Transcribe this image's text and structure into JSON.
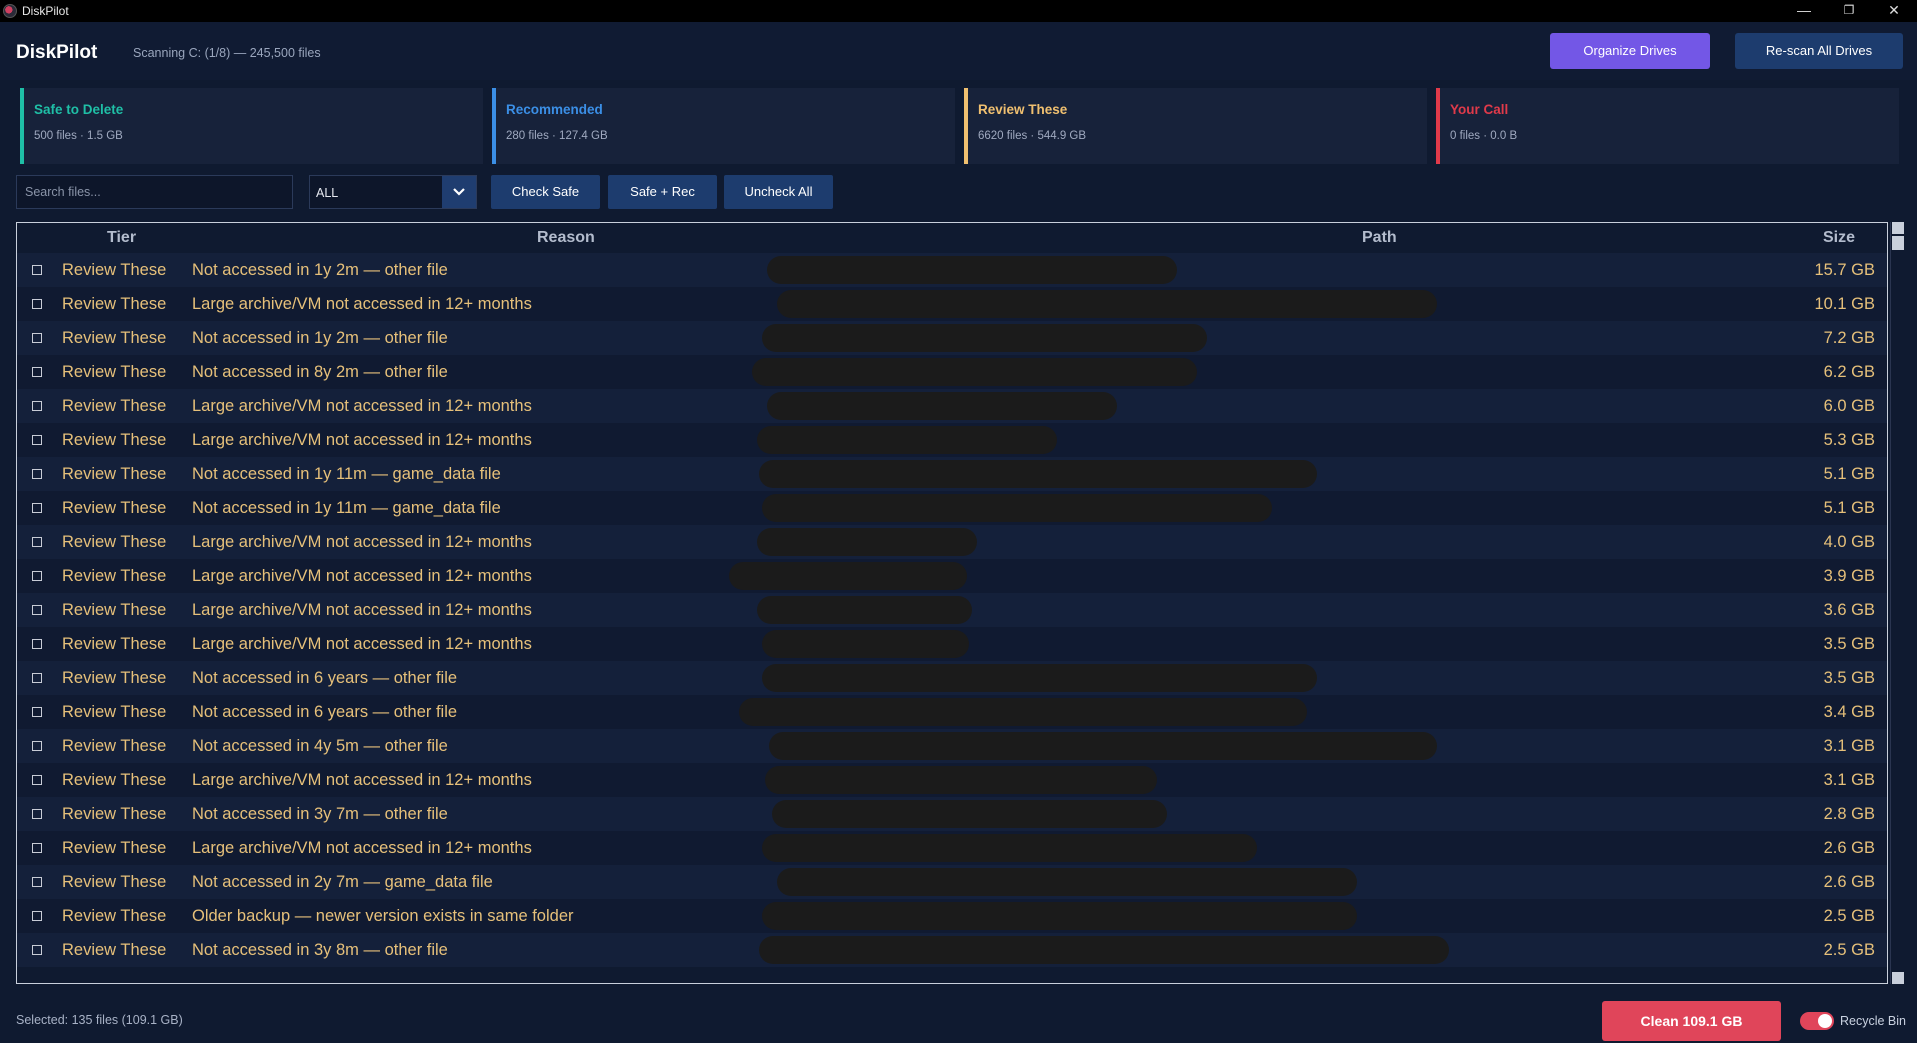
{
  "window": {
    "title": "DiskPilot",
    "minimize": "—",
    "maximize": "❐",
    "close": "✕"
  },
  "header": {
    "brand": "DiskPilot",
    "scan_status": "Scanning C: (1/8) — 245,500 files",
    "organize_label": "Organize Drives",
    "rescan_label": "Re-scan All Drives"
  },
  "colors": {
    "safe": "#1fbfa6",
    "recommended": "#3b8fe6",
    "review": "#f0c070",
    "your_call": "#e03a4a",
    "accent": "#7357e6",
    "danger": "#e0455a"
  },
  "cards": [
    {
      "name": "Safe to Delete",
      "stats": "500 files · 1.5 GB"
    },
    {
      "name": "Recommended",
      "stats": "280 files · 127.4 GB"
    },
    {
      "name": "Review These",
      "stats": "6620 files · 544.9 GB"
    },
    {
      "name": "Your Call",
      "stats": "0 files · 0.0 B"
    }
  ],
  "toolbar": {
    "search_placeholder": "Search files...",
    "filter_value": "ALL",
    "check_safe": "Check Safe",
    "safe_rec": "Safe + Rec",
    "uncheck_all": "Uncheck All"
  },
  "table": {
    "headers": {
      "tier": "Tier",
      "reason": "Reason",
      "path": "Path",
      "size": "Size"
    },
    "rows": [
      {
        "tier": "Review These",
        "reason": "Not accessed in 1y 2m — other file",
        "size": "15.7 GB"
      },
      {
        "tier": "Review These",
        "reason": "Large archive/VM not accessed in 12+ months",
        "size": "10.1 GB"
      },
      {
        "tier": "Review These",
        "reason": "Not accessed in 1y 2m — other file",
        "size": "7.2 GB"
      },
      {
        "tier": "Review These",
        "reason": "Not accessed in 8y 2m — other file",
        "size": "6.2 GB"
      },
      {
        "tier": "Review These",
        "reason": "Large archive/VM not accessed in 12+ months",
        "size": "6.0 GB"
      },
      {
        "tier": "Review These",
        "reason": "Large archive/VM not accessed in 12+ months",
        "size": "5.3 GB"
      },
      {
        "tier": "Review These",
        "reason": "Not accessed in 1y 11m — game_data file",
        "size": "5.1 GB"
      },
      {
        "tier": "Review These",
        "reason": "Not accessed in 1y 11m — game_data file",
        "size": "5.1 GB"
      },
      {
        "tier": "Review These",
        "reason": "Large archive/VM not accessed in 12+ months",
        "size": "4.0 GB"
      },
      {
        "tier": "Review These",
        "reason": "Large archive/VM not accessed in 12+ months",
        "size": "3.9 GB"
      },
      {
        "tier": "Review These",
        "reason": "Large archive/VM not accessed in 12+ months",
        "size": "3.6 GB"
      },
      {
        "tier": "Review These",
        "reason": "Large archive/VM not accessed in 12+ months",
        "size": "3.5 GB"
      },
      {
        "tier": "Review These",
        "reason": "Not accessed in 6 years — other file",
        "size": "3.5 GB"
      },
      {
        "tier": "Review These",
        "reason": "Not accessed in 6 years — other file",
        "size": "3.4 GB"
      },
      {
        "tier": "Review These",
        "reason": "Not accessed in 4y 5m — other file",
        "size": "3.1 GB"
      },
      {
        "tier": "Review These",
        "reason": "Large archive/VM not accessed in 12+ months",
        "size": "3.1 GB"
      },
      {
        "tier": "Review These",
        "reason": "Not accessed in 3y 7m — other file",
        "size": "2.8 GB"
      },
      {
        "tier": "Review These",
        "reason": "Large archive/VM not accessed in 12+ months",
        "size": "2.6 GB"
      },
      {
        "tier": "Review These",
        "reason": "Not accessed in 2y 7m — game_data file",
        "size": "2.6 GB"
      },
      {
        "tier": "Review These",
        "reason": "Older backup — newer version exists in same folder",
        "size": "2.5 GB"
      },
      {
        "tier": "Review These",
        "reason": "Not accessed in 3y 8m — other file",
        "size": "2.5 GB"
      }
    ]
  },
  "footer": {
    "selected": "Selected: 135 files (109.1 GB)",
    "clean_label": "Clean 109.1 GB",
    "recycle_label": "Recycle Bin",
    "recycle_on": true
  }
}
